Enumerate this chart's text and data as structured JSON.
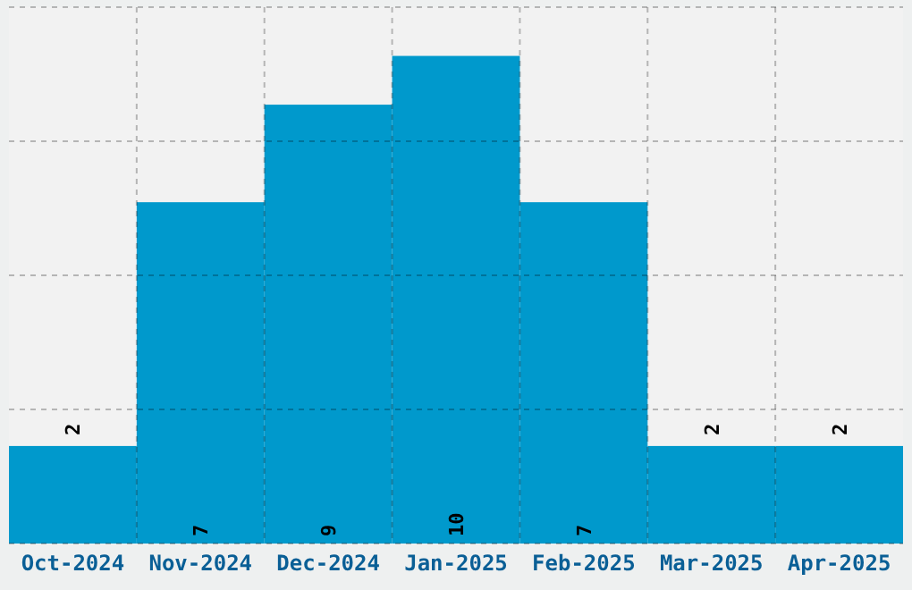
{
  "chart_data": {
    "type": "bar",
    "categories": [
      "Oct-2024",
      "Nov-2024",
      "Dec-2024",
      "Jan-2025",
      "Feb-2025",
      "Mar-2025",
      "Apr-2025"
    ],
    "values": [
      2,
      7,
      9,
      10,
      7,
      2,
      2
    ],
    "color": "#0099cc",
    "ylim": [
      0,
      11
    ],
    "yticks": [
      {
        "value": 0,
        "label": null
      },
      {
        "value": 2.75,
        "label": null
      },
      {
        "value": 5.5,
        "label": null
      },
      {
        "value": 8.25,
        "label": null
      },
      {
        "value": 11,
        "label": null
      }
    ],
    "tick_labels": "x",
    "grid": true,
    "data_labels": true
  }
}
